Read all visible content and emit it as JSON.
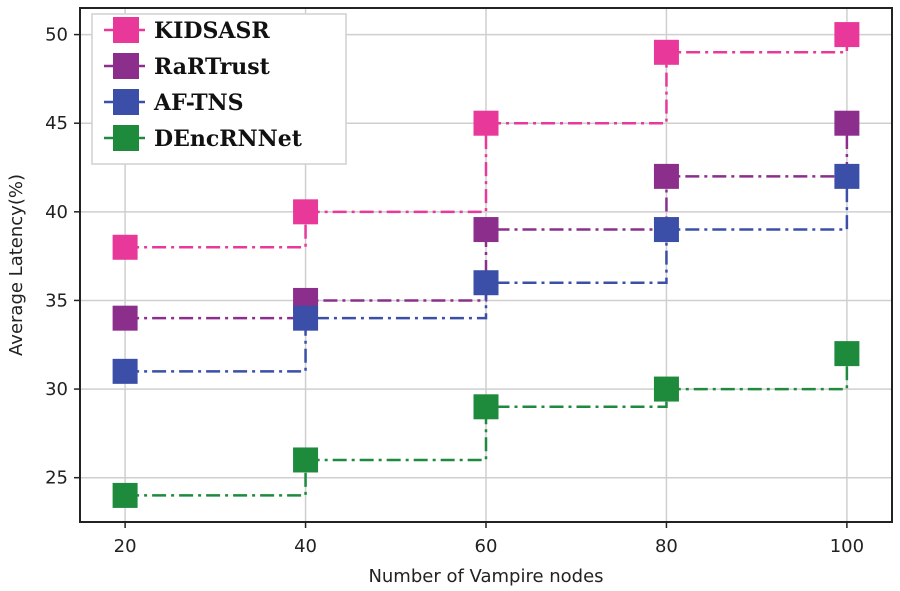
{
  "chart_data": {
    "type": "line",
    "step": "post",
    "xlabel": "Number of Vampire nodes",
    "ylabel": "Average Latency(%)",
    "x": [
      20,
      40,
      60,
      80,
      100
    ],
    "xlim": [
      15,
      105
    ],
    "ylim": [
      22.5,
      51.5
    ],
    "xticks": [
      20,
      40,
      60,
      80,
      100
    ],
    "yticks": [
      25,
      30,
      35,
      40,
      45,
      50
    ],
    "grid": true,
    "legend_position": "top-left",
    "series": [
      {
        "name": "KIDSASR",
        "values": [
          38,
          40,
          45,
          49,
          50
        ],
        "color": "#e8389a"
      },
      {
        "name": "RaRTrust",
        "values": [
          34,
          35,
          39,
          42,
          45
        ],
        "color": "#8c2f8c"
      },
      {
        "name": "AF-TNS",
        "values": [
          31,
          34,
          36,
          39,
          42
        ],
        "color": "#3b4fa8"
      },
      {
        "name": "DEncRNNet",
        "values": [
          24,
          26,
          29,
          30,
          32
        ],
        "color": "#1e8a3c"
      }
    ]
  }
}
